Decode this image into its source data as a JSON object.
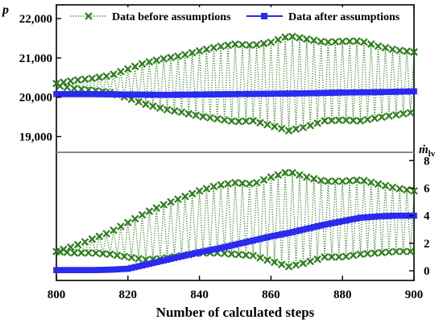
{
  "chart_data": {
    "type": "line",
    "xlabel": "Number of calculated steps",
    "xlim": [
      800,
      900
    ],
    "xticks": [
      800,
      820,
      840,
      860,
      880,
      900
    ],
    "legend": {
      "placement": "top",
      "entries": [
        "Data before assumptions",
        "Data after assumptions"
      ]
    },
    "panels": [
      {
        "position": "top",
        "ylabel": "p",
        "ylabel_side": "left",
        "ylim": [
          18600,
          22350
        ],
        "yticks": [
          19000,
          20000,
          21000,
          22000
        ],
        "ytick_labels": [
          "19,000",
          "20,000",
          "21,000",
          "22,000"
        ],
        "series": [
          {
            "name": "Data before assumptions",
            "color": "#2e7d1f",
            "marker": "x",
            "style": "dotted-oscillation",
            "upper_envelope": {
              "x": [
                800,
                805,
                810,
                815,
                820,
                825,
                830,
                835,
                840,
                845,
                850,
                855,
                860,
                865,
                870,
                875,
                880,
                885,
                890,
                895,
                900
              ],
              "y": [
                20350,
                20430,
                20480,
                20550,
                20720,
                20880,
                20980,
                21060,
                21180,
                21280,
                21350,
                21320,
                21400,
                21560,
                21480,
                21400,
                21420,
                21430,
                21300,
                21200,
                21150
              ]
            },
            "lower_envelope": {
              "x": [
                800,
                805,
                810,
                815,
                820,
                825,
                830,
                835,
                840,
                845,
                850,
                855,
                860,
                865,
                870,
                875,
                880,
                885,
                890,
                895,
                900
              ],
              "y": [
                20300,
                20220,
                20180,
                20120,
                19980,
                19820,
                19700,
                19620,
                19520,
                19450,
                19380,
                19400,
                19280,
                19150,
                19250,
                19400,
                19420,
                19400,
                19480,
                19550,
                19620
              ]
            }
          },
          {
            "name": "Data after assumptions",
            "color": "#2a2af0",
            "marker": "square",
            "x": [
              800,
              810,
              820,
              830,
              840,
              850,
              860,
              870,
              880,
              890,
              900
            ],
            "y": [
              20080,
              20080,
              20070,
              20060,
              20070,
              20080,
              20090,
              20100,
              20120,
              20130,
              20150
            ]
          }
        ]
      },
      {
        "position": "bottom",
        "ylabel": "ṁ",
        "ylabel_sub": "lv",
        "ylabel_side": "right",
        "ylim": [
          -0.7,
          8.6
        ],
        "yticks": [
          0,
          2,
          4,
          6,
          8
        ],
        "ytick_labels": [
          "0",
          "2",
          "4",
          "6",
          "8"
        ],
        "series": [
          {
            "name": "Data before assumptions",
            "color": "#2e7d1f",
            "marker": "x",
            "style": "dotted-oscillation",
            "upper_envelope": {
              "x": [
                800,
                805,
                810,
                815,
                820,
                825,
                830,
                835,
                840,
                845,
                850,
                855,
                860,
                865,
                870,
                875,
                880,
                885,
                890,
                895,
                900
              ],
              "y": [
                1.4,
                1.8,
                2.3,
                2.8,
                3.5,
                4.2,
                4.8,
                5.3,
                5.8,
                6.2,
                6.4,
                6.3,
                6.8,
                7.2,
                6.8,
                6.5,
                6.5,
                6.6,
                6.3,
                6.0,
                5.8
              ]
            },
            "lower_envelope": {
              "x": [
                800,
                805,
                810,
                815,
                820,
                825,
                830,
                835,
                840,
                845,
                850,
                855,
                860,
                865,
                870,
                875,
                880,
                885,
                890,
                895,
                900
              ],
              "y": [
                1.4,
                1.3,
                1.3,
                1.2,
                1.0,
                0.8,
                0.9,
                1.1,
                1.3,
                1.3,
                1.2,
                1.1,
                0.7,
                0.3,
                0.6,
                1.0,
                1.0,
                1.2,
                1.3,
                1.4,
                1.4
              ]
            }
          },
          {
            "name": "Data after assumptions",
            "color": "#2a2af0",
            "marker": "square",
            "x": [
              800,
              805,
              810,
              815,
              820,
              825,
              830,
              835,
              840,
              845,
              850,
              855,
              860,
              865,
              870,
              875,
              880,
              885,
              890,
              895,
              900
            ],
            "y": [
              0.05,
              0.05,
              0.05,
              0.08,
              0.15,
              0.45,
              0.75,
              1.05,
              1.35,
              1.6,
              1.9,
              2.2,
              2.5,
              2.75,
              3.05,
              3.35,
              3.6,
              3.85,
              3.95,
              4.0,
              4.0
            ]
          }
        ]
      }
    ]
  }
}
